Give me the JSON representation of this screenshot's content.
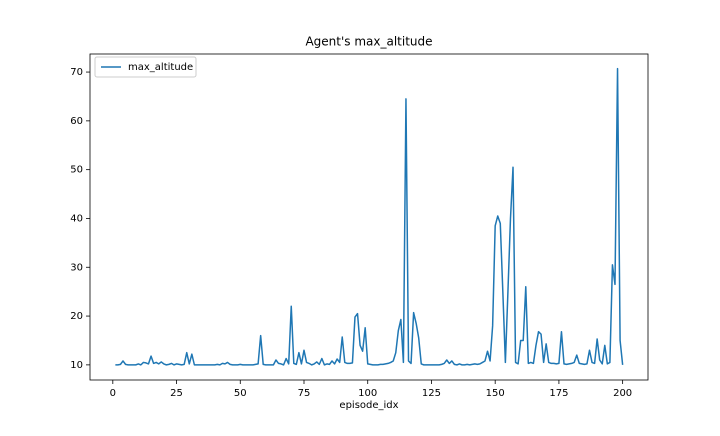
{
  "chart_data": {
    "type": "line",
    "title": "Agent's max_altitude",
    "x_label": "episode_idx",
    "x": [
      1,
      2,
      3,
      4,
      5,
      6,
      7,
      8,
      9,
      10,
      11,
      12,
      13,
      14,
      15,
      16,
      17,
      18,
      19,
      20,
      21,
      22,
      23,
      24,
      25,
      26,
      27,
      28,
      29,
      30,
      31,
      32,
      33,
      34,
      35,
      36,
      37,
      38,
      39,
      40,
      41,
      42,
      43,
      44,
      45,
      46,
      47,
      48,
      49,
      50,
      51,
      52,
      53,
      54,
      55,
      56,
      57,
      58,
      59,
      60,
      61,
      62,
      63,
      64,
      65,
      66,
      67,
      68,
      69,
      70,
      71,
      72,
      73,
      74,
      75,
      76,
      77,
      78,
      79,
      80,
      81,
      82,
      83,
      84,
      85,
      86,
      87,
      88,
      89,
      90,
      91,
      92,
      93,
      94,
      95,
      96,
      97,
      98,
      99,
      100,
      101,
      102,
      103,
      104,
      105,
      106,
      107,
      108,
      109,
      110,
      111,
      112,
      113,
      114,
      115,
      116,
      117,
      118,
      119,
      120,
      121,
      122,
      123,
      124,
      125,
      126,
      127,
      128,
      129,
      130,
      131,
      132,
      133,
      134,
      135,
      136,
      137,
      138,
      139,
      140,
      141,
      142,
      143,
      144,
      145,
      146,
      147,
      148,
      149,
      150,
      151,
      152,
      153,
      154,
      155,
      156,
      157,
      158,
      159,
      160,
      161,
      162,
      163,
      164,
      165,
      166,
      167,
      168,
      169,
      170,
      171,
      172,
      173,
      174,
      175,
      176,
      177,
      178,
      179,
      180,
      181,
      182,
      183,
      184,
      185,
      186,
      187,
      188,
      189,
      190,
      191,
      192,
      193,
      194,
      195,
      196,
      197,
      198,
      199,
      200
    ],
    "series": [
      {
        "name": "max_altitude",
        "color": "#1f77b4",
        "values": [
          10,
          10,
          10.1,
          10.8,
          10.1,
          10,
          10,
          10,
          10,
          10.2,
          10,
          10.5,
          10.4,
          10.2,
          11.8,
          10.3,
          10.5,
          10.2,
          10.6,
          10.2,
          10,
          10.1,
          10.3,
          10,
          10.2,
          10.1,
          10,
          10.1,
          12.5,
          10.2,
          12.2,
          10,
          10,
          10,
          10,
          10,
          10,
          10,
          10,
          10,
          10.1,
          10,
          10.3,
          10.2,
          10.5,
          10.1,
          10,
          10,
          10,
          10.1,
          10,
          10,
          10,
          10,
          10,
          10.1,
          10.2,
          16,
          10.1,
          10,
          10,
          10,
          10,
          11,
          10.3,
          10.2,
          10,
          11.3,
          10.2,
          22,
          10.3,
          10.1,
          12.5,
          10.2,
          13,
          10.5,
          10.3,
          10,
          10.2,
          10.6,
          10.1,
          11.3,
          10,
          10.2,
          10.1,
          10.8,
          10.2,
          11.2,
          10.5,
          15.7,
          10.5,
          10.3,
          10.3,
          10.4,
          19.8,
          20.5,
          14,
          12.8,
          17.6,
          10.2,
          10.1,
          10,
          10,
          10,
          10.1,
          10.1,
          10.2,
          10.3,
          10.5,
          10.8,
          12.5,
          17,
          19.3,
          10.5,
          64.5,
          10.8,
          10.3,
          20.7,
          18.5,
          15.5,
          10.2,
          10,
          10,
          10,
          10,
          10,
          10,
          10,
          10.1,
          10.3,
          11,
          10.3,
          10.8,
          10.1,
          10,
          10.2,
          10,
          10,
          10.1,
          10,
          10.1,
          10.2,
          10.1,
          10.2,
          10.5,
          10.8,
          12.8,
          10.8,
          18,
          38.5,
          40.5,
          39,
          25,
          10.5,
          25,
          40,
          50.5,
          10.5,
          10.2,
          15,
          15,
          26,
          10.3,
          10.5,
          10.3,
          14,
          16.8,
          16.3,
          10.5,
          14.3,
          10.5,
          10.3,
          10.3,
          10.2,
          10.3,
          16.8,
          10.2,
          10.1,
          10.2,
          10.3,
          10.5,
          12,
          10.3,
          10.2,
          10.1,
          10.2,
          13,
          10.5,
          10.3,
          15.3,
          11,
          10.2,
          14,
          10.2,
          10.5,
          30.5,
          26.5,
          70.7,
          15,
          10
        ]
      }
    ],
    "xlim": [
      -8.95,
      209.95
    ],
    "ylim": [
      6.9,
      73.7
    ],
    "xticks": [
      0,
      25,
      50,
      75,
      100,
      125,
      150,
      175,
      200
    ],
    "yticks": [
      10,
      20,
      30,
      40,
      50,
      60,
      70
    ],
    "legend": "upper left"
  }
}
